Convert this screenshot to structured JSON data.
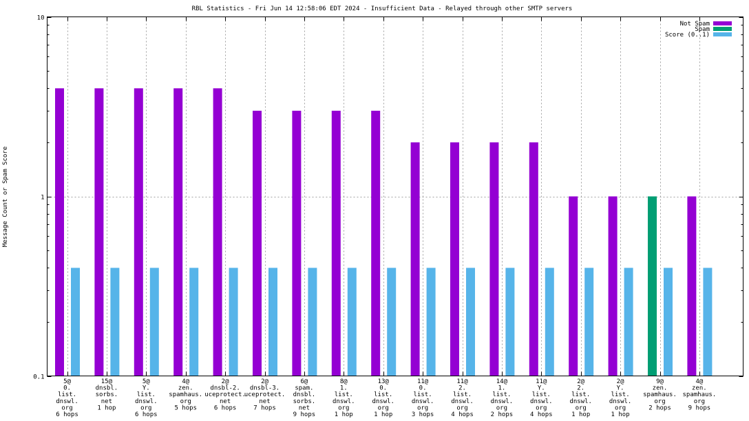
{
  "chart_data": {
    "type": "bar",
    "title": "RBL Statistics - Fri Jun 14 12:58:06 EDT 2024 - Insufficient Data - Relayed through other SMTP servers",
    "ylabel": "Message Count or Spam Score",
    "yscale": "log",
    "ylim": [
      0.1,
      10
    ],
    "yticks": [
      "0.1",
      "1",
      "10"
    ],
    "grid": true,
    "legend_position": "top-right",
    "categories": [
      [
        "5@",
        "0.",
        "list.",
        "dnswl.",
        "org",
        "6 hops"
      ],
      [
        "15@",
        "dnsbl.",
        "sorbs.",
        "net",
        "1 hop"
      ],
      [
        "5@",
        "Y.",
        "list.",
        "dnswl.",
        "org",
        "6 hops"
      ],
      [
        "4@",
        "zen.",
        "spamhaus.",
        "org",
        "5 hops"
      ],
      [
        "2@",
        "dnsbl-2.",
        "uceprotect.",
        "net",
        "6 hops"
      ],
      [
        "2@",
        "dnsbl-3.",
        "uceprotect.",
        "net",
        "7 hops"
      ],
      [
        "6@",
        "spam.",
        "dnsbl.",
        "sorbs.",
        "net",
        "9 hops"
      ],
      [
        "8@",
        "1.",
        "list.",
        "dnswl.",
        "org",
        "1 hop"
      ],
      [
        "13@",
        "0.",
        "list.",
        "dnswl.",
        "org",
        "1 hop"
      ],
      [
        "11@",
        "0.",
        "list.",
        "dnswl.",
        "org",
        "3 hops"
      ],
      [
        "11@",
        "2.",
        "list.",
        "dnswl.",
        "org",
        "4 hops"
      ],
      [
        "14@",
        "1.",
        "list.",
        "dnswl.",
        "org",
        "2 hops"
      ],
      [
        "11@",
        "Y.",
        "list.",
        "dnswl.",
        "org",
        "4 hops"
      ],
      [
        "2@",
        "2.",
        "list.",
        "dnswl.",
        "org",
        "1 hop"
      ],
      [
        "2@",
        "Y.",
        "list.",
        "dnswl.",
        "org",
        "1 hop"
      ],
      [
        "9@",
        "zen.",
        "spamhaus.",
        "org",
        "2 hops"
      ],
      [
        "4@",
        "zen.",
        "spamhaus.",
        "org",
        "9 hops"
      ]
    ],
    "series": [
      {
        "name": "Not Spam",
        "color": "#9400d3",
        "values": [
          4,
          4,
          4,
          4,
          4,
          3,
          3,
          3,
          3,
          2,
          2,
          2,
          2,
          1,
          1,
          0,
          1
        ]
      },
      {
        "name": "Spam",
        "color": "#009e73",
        "values": [
          0,
          0,
          0,
          0,
          0,
          0,
          0,
          0,
          0,
          0,
          0,
          0,
          0,
          0,
          0,
          1,
          0
        ]
      },
      {
        "name": "Score (0..1)",
        "color": "#56b4e9",
        "values": [
          0.4,
          0.4,
          0.4,
          0.4,
          0.4,
          0.4,
          0.4,
          0.4,
          0.4,
          0.4,
          0.4,
          0.4,
          0.4,
          0.4,
          0.4,
          0.4,
          0.4
        ]
      }
    ]
  }
}
